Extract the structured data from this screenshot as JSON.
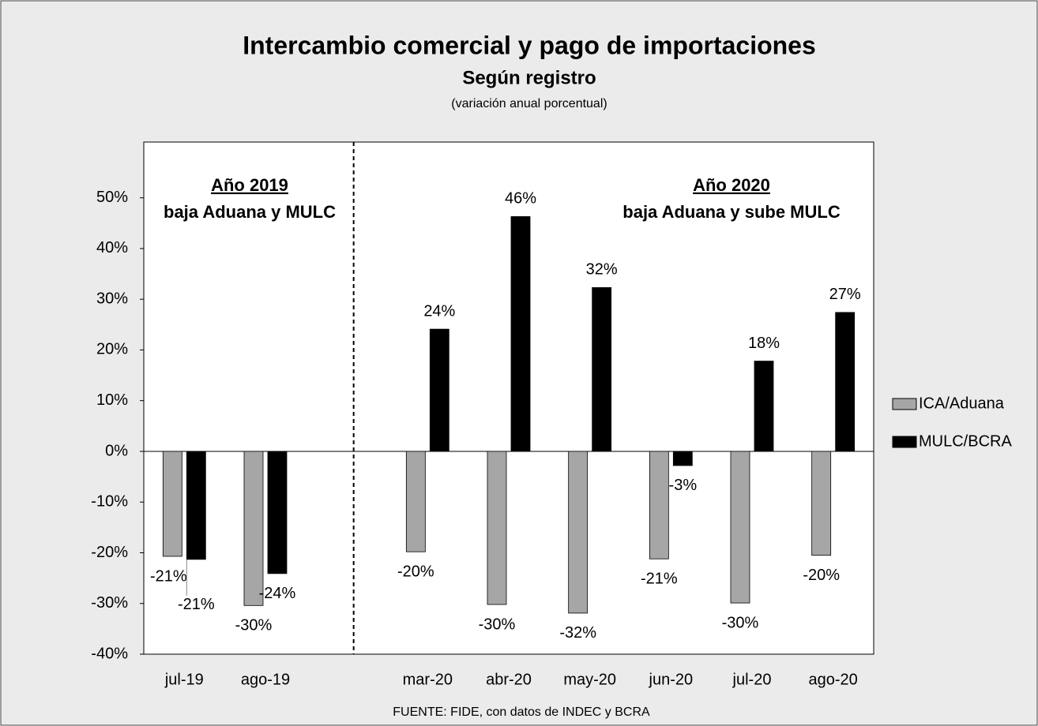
{
  "chart_data": {
    "type": "bar",
    "title": "Intercambio comercial y pago de importaciones",
    "subtitle": "Según registro",
    "note": "(variación anual porcentual)",
    "annotations": [
      "Año 2019",
      "baja Aduana y MULC",
      "Año 2020",
      "baja Aduana y sube MULC"
    ],
    "source": "FUENTE: FIDE, con datos de INDEC y BCRA",
    "categories": [
      "jul-19",
      "ago-19",
      null,
      "mar-20",
      "abr-20",
      "may-20",
      "jun-20",
      "jul-20",
      "ago-20"
    ],
    "series": [
      {
        "name": "ICA/Aduana",
        "color": "#a6a6a6",
        "values": [
          -20.7,
          -30.4,
          null,
          -19.8,
          -30.2,
          -31.9,
          -21.2,
          -29.9,
          -20.5
        ],
        "value_labels": [
          "-21%",
          "-30%",
          null,
          "-20%",
          "-30%",
          "-32%",
          "-21%",
          "-30%",
          "-20%"
        ]
      },
      {
        "name": "MULC/BCRA",
        "color": "#000000",
        "values": [
          -21.3,
          -24.1,
          null,
          24.1,
          46.3,
          32.3,
          -2.8,
          17.8,
          27.4
        ],
        "value_labels": [
          "-21%",
          "-24%",
          null,
          "24%",
          "46%",
          "32%",
          "-3%",
          "18%",
          "27%"
        ]
      }
    ],
    "ylim": [
      -40,
      61
    ],
    "yticks": [
      {
        "value": -40,
        "label": "-40%"
      },
      {
        "value": -30,
        "label": "-30%"
      },
      {
        "value": -20,
        "label": "-20%"
      },
      {
        "value": -10,
        "label": "-10%"
      },
      {
        "value": 0,
        "label": "0%"
      },
      {
        "value": 10,
        "label": "10%"
      },
      {
        "value": 20,
        "label": "20%"
      },
      {
        "value": 30,
        "label": "30%"
      },
      {
        "value": 40,
        "label": "40%"
      },
      {
        "value": 50,
        "label": "50%"
      }
    ],
    "legend": "right"
  }
}
